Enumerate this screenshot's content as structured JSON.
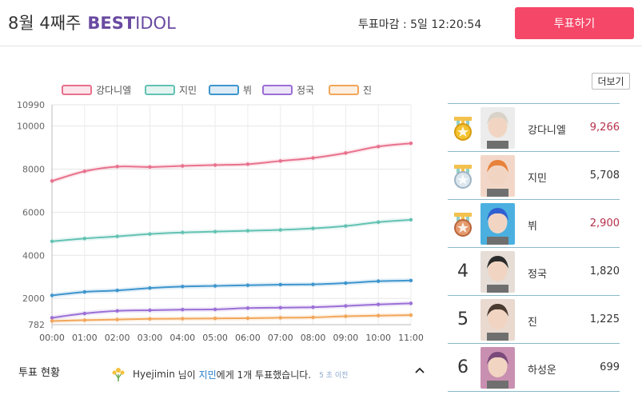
{
  "header": {
    "title_prefix": "8월 4째주",
    "brand_bold": "BEST",
    "brand_rest": "IDOL",
    "deadline": "투표마감 : 5일 12:20:54",
    "vote_button": "투표하기"
  },
  "more_button": "더보기",
  "chart_data": {
    "type": "line",
    "x": [
      "00:00",
      "01:00",
      "02:00",
      "03:00",
      "04:00",
      "05:00",
      "06:00",
      "07:00",
      "08:00",
      "09:00",
      "10:00",
      "11:00"
    ],
    "y_ticks": [
      782,
      2000,
      4000,
      6000,
      8000,
      10000,
      10990
    ],
    "ylim": [
      782,
      10990
    ],
    "grid": true,
    "legend_position": "top",
    "series": [
      {
        "name": "강다니엘",
        "color": "#e8718d",
        "values": [
          7450,
          7900,
          8120,
          8100,
          8150,
          8190,
          8230,
          8380,
          8520,
          8750,
          9050,
          9200
        ]
      },
      {
        "name": "지민",
        "color": "#63c2b3",
        "values": [
          4650,
          4780,
          4880,
          4990,
          5060,
          5100,
          5140,
          5180,
          5250,
          5360,
          5540,
          5650
        ]
      },
      {
        "name": "뷔",
        "color": "#3e95cd",
        "values": [
          2140,
          2300,
          2370,
          2480,
          2550,
          2580,
          2610,
          2640,
          2650,
          2710,
          2800,
          2830
        ]
      },
      {
        "name": "정국",
        "color": "#9b6fd6",
        "values": [
          1100,
          1300,
          1420,
          1450,
          1480,
          1490,
          1550,
          1570,
          1590,
          1650,
          1720,
          1770
        ]
      },
      {
        "name": "진",
        "color": "#f2a65a",
        "values": [
          950,
          990,
          1020,
          1050,
          1060,
          1070,
          1080,
          1100,
          1120,
          1170,
          1200,
          1225
        ]
      }
    ]
  },
  "ranking": [
    {
      "rank": "1",
      "medal": "gold",
      "name": "강다니엘",
      "score": "9,266",
      "top": true,
      "hair": "#d9d2c8",
      "bg": "#ececec"
    },
    {
      "rank": "2",
      "medal": "silver",
      "name": "지민",
      "score": "5,708",
      "top": false,
      "hair": "#e8823a",
      "bg": "#f2d7c8"
    },
    {
      "rank": "3",
      "medal": "bronze",
      "name": "뷔",
      "score": "2,900",
      "top": true,
      "hair": "#2f5fd0",
      "bg": "#4bb0e0"
    },
    {
      "rank": "4",
      "medal": "",
      "name": "정국",
      "score": "1,820",
      "top": false,
      "hair": "#2b2b2b",
      "bg": "#e5ddd6"
    },
    {
      "rank": "5",
      "medal": "",
      "name": "진",
      "score": "1,225",
      "top": false,
      "hair": "#4a3a30",
      "bg": "#e9d9cf"
    },
    {
      "rank": "6",
      "medal": "",
      "name": "하성운",
      "score": "699",
      "top": false,
      "hair": "#7a4a7a",
      "bg": "#c98fb0"
    }
  ],
  "bottom": {
    "status_label": "투표 현황",
    "user": "Hyejimin",
    "particle": "님이",
    "target": "지민",
    "message": "에게 1개 투표했습니다.",
    "ago": "5 초 이전"
  }
}
